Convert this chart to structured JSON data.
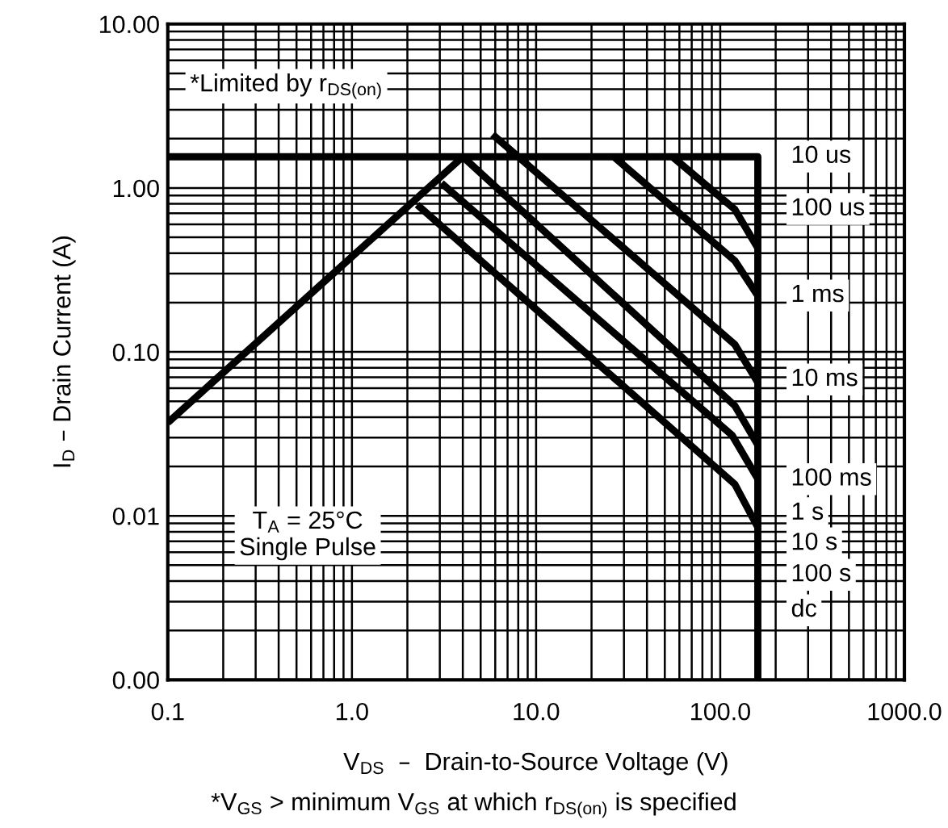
{
  "chart_data": {
    "type": "line",
    "xlabel": "V$_{DS}$  –  Drain-to-Source Voltage (V)",
    "ylabel": "I$_{D}$ – Drain Current (A)",
    "log": "xy",
    "grid": true,
    "marker": "none",
    "line_style": "solid",
    "xlim": [
      0.1,
      1000
    ],
    "ylim": [
      0.001,
      10
    ],
    "xticks": [
      {
        "value": 0.1,
        "label": "0.1"
      },
      {
        "value": 1,
        "label": "1.0"
      },
      {
        "value": 10,
        "label": "10.0"
      },
      {
        "value": 100,
        "label": "100.0"
      },
      {
        "value": 1000,
        "label": "1000.0"
      }
    ],
    "yticks": [
      {
        "value": 0.001,
        "label": "0.00"
      },
      {
        "value": 0.01,
        "label": "0.01"
      },
      {
        "value": 0.1,
        "label": "0.10"
      },
      {
        "value": 1,
        "label": "1.00"
      },
      {
        "value": 10,
        "label": "10.00"
      }
    ],
    "series": [
      {
        "color": "#000000",
        "x": [
          0.1,
          4.0
        ],
        "values": [
          0.037,
          1.55
        ]
      },
      {
        "color": "#000000",
        "x": [
          0.1,
          160,
          160
        ],
        "values": [
          1.55,
          1.55,
          0.001
        ]
      },
      {
        "color": "#000000",
        "x": [
          55,
          120,
          160
        ],
        "values": [
          1.55,
          0.74,
          0.43
        ]
      },
      {
        "color": "#000000",
        "x": [
          26.4,
          120,
          160
        ],
        "values": [
          1.55,
          0.36,
          0.22
        ]
      },
      {
        "color": "#000000",
        "x": [
          5.8,
          120,
          160
        ],
        "values": [
          2.12,
          0.111,
          0.065
        ]
      },
      {
        "color": "#000000",
        "x": [
          4.0,
          120,
          160
        ],
        "values": [
          1.55,
          0.047,
          0.027
        ]
      },
      {
        "color": "#000000",
        "x": [
          3.06,
          116,
          160
        ],
        "values": [
          1.07,
          0.031,
          0.0168
        ]
      },
      {
        "color": "#000000",
        "x": [
          2.26,
          120,
          160
        ],
        "values": [
          0.79,
          0.0156,
          0.0085
        ]
      }
    ],
    "annotations": [
      "10 us",
      "100 us",
      "1 ms",
      "10 ms",
      "100 ms",
      "1 s",
      "10 s",
      "100 s",
      "dc",
      "*Limited by r$_{DS(on)}$",
      "T$_{A}$ = 25°C\nSingle Pulse",
      "*V$_{GS}$ > minimum V$_{GS}$ at which r$_{DS(on)}$ is specified"
    ]
  }
}
